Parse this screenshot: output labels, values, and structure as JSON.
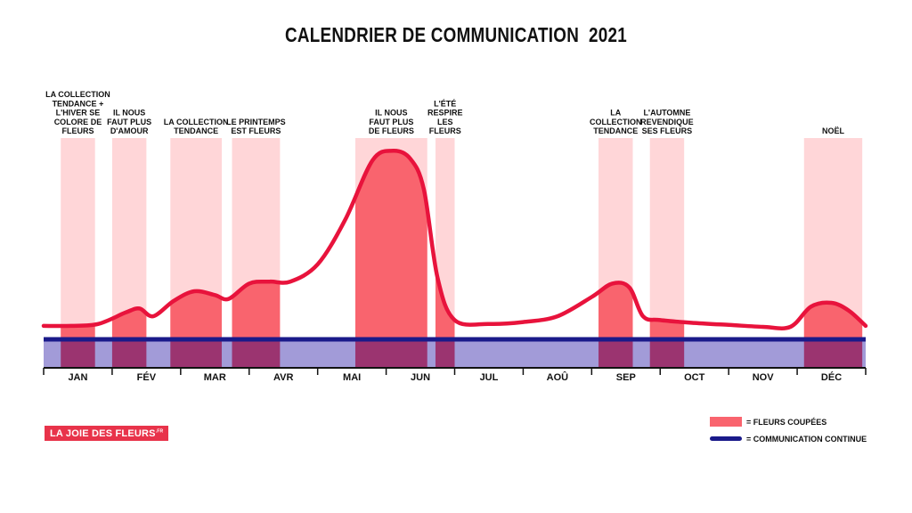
{
  "chart_data": {
    "type": "area",
    "title": "CALENDRIER DE COMMUNICATION  2021",
    "categories": [
      "JAN",
      "FÉV",
      "MAR",
      "AVR",
      "MAI",
      "JUN",
      "JUL",
      "AOÛ",
      "SEP",
      "OCT",
      "NOV",
      "DÉC"
    ],
    "events": [
      {
        "label": "LA COLLECTION\nTENDANCE +\nL'HIVER SE\nCOLORE DE\nFLEURS",
        "start": 0.25,
        "end": 0.75
      },
      {
        "label": "IL NOUS\nFAUT PLUS\nD'AMOUR",
        "start": 1.0,
        "end": 1.5
      },
      {
        "label": "LA COLLECTION\nTENDANCE",
        "start": 1.85,
        "end": 2.6
      },
      {
        "label": "LE PRINTEMPS\nEST FLEURS",
        "start": 2.75,
        "end": 3.45
      },
      {
        "label": "IL NOUS\nFAUT PLUS\nDE FLEURS",
        "start": 4.55,
        "end": 5.6
      },
      {
        "label": "L'ÉTÉ\nRESPIRE\nLES\nFLEURS",
        "start": 5.72,
        "end": 6.0
      },
      {
        "label": "LA\nCOLLECTION\nTENDANCE",
        "start": 8.1,
        "end": 8.6
      },
      {
        "label": "L'AUTOMNE\nREVENDIQUE\nSES FLEURS",
        "start": 8.85,
        "end": 9.35
      },
      {
        "label": "NOËL",
        "start": 11.1,
        "end": 11.95
      }
    ],
    "curve": {
      "x": [
        0.0,
        0.4,
        0.8,
        1.2,
        1.4,
        1.6,
        1.9,
        2.2,
        2.5,
        2.7,
        3.0,
        3.3,
        3.6,
        4.0,
        4.4,
        4.8,
        5.1,
        5.35,
        5.55,
        5.75,
        6.0,
        6.5,
        7.0,
        7.5,
        8.0,
        8.3,
        8.55,
        8.75,
        9.0,
        9.5,
        10.0,
        10.5,
        10.9,
        11.2,
        11.5,
        11.75,
        12.0
      ],
      "y": [
        0.07,
        0.07,
        0.08,
        0.14,
        0.16,
        0.12,
        0.2,
        0.25,
        0.23,
        0.21,
        0.29,
        0.3,
        0.3,
        0.39,
        0.62,
        0.93,
        0.98,
        0.94,
        0.78,
        0.32,
        0.1,
        0.08,
        0.09,
        0.12,
        0.22,
        0.29,
        0.27,
        0.12,
        0.1,
        0.085,
        0.075,
        0.065,
        0.065,
        0.17,
        0.19,
        0.15,
        0.07
      ]
    },
    "legend": [
      {
        "label": "= FLEURS COUPÉES",
        "color": "#f9646e"
      },
      {
        "label": "= COMMUNICATION CONTINUE",
        "color": "#1a1a8a"
      }
    ],
    "colors": {
      "event_band": "#ffd6d8",
      "area_fill": "#f9646e",
      "curve_stroke": "#e8133c",
      "continuous_band": "#a29bd8",
      "overlap": "#9b3470",
      "continuous_line": "#1a1a8a",
      "axis": "#111111"
    },
    "legend_position": "bottom-right",
    "grid": false
  },
  "logo": {
    "text": "LA JOIE DES ",
    "strong": "FLEURS",
    "suffix": ".FR"
  }
}
